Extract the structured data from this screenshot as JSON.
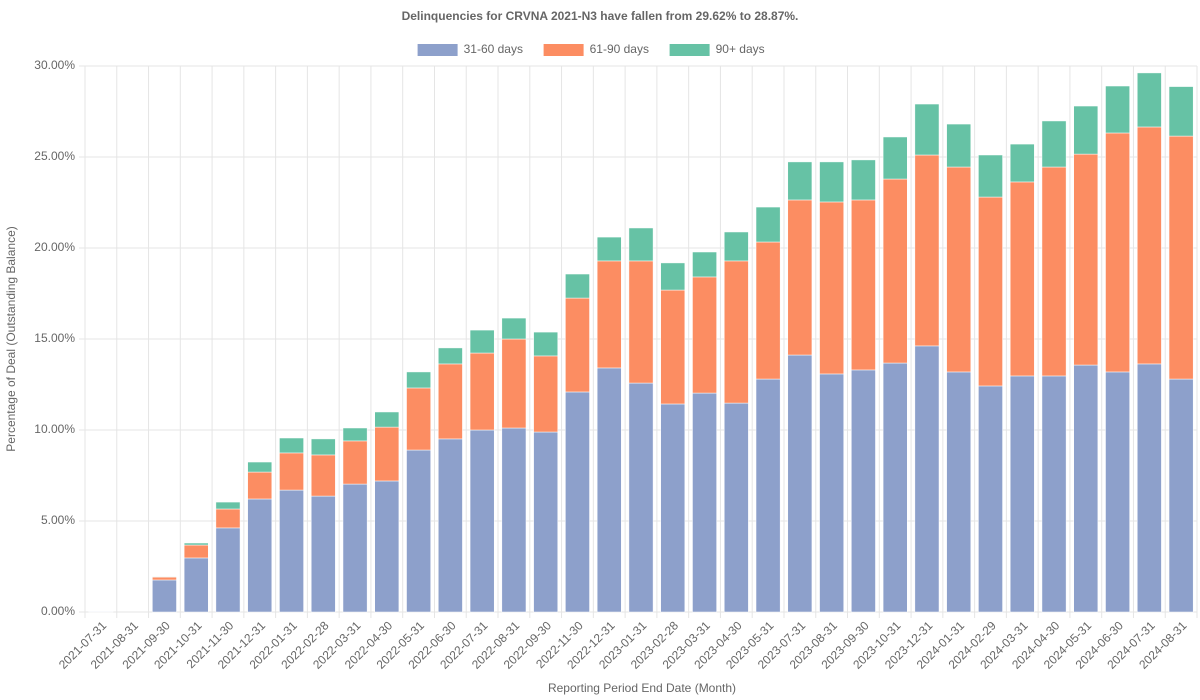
{
  "chart_data": {
    "type": "stacked_bar",
    "title": "Delinquencies for CRVNA 2021-N3 have fallen from 29.62% to 28.87%.",
    "x_label": "Reporting Period End Date (Month)",
    "y_label": "Percentage of Deal (Outstanding Balance)",
    "categories": [
      "2021-07-31",
      "2021-08-31",
      "2021-09-30",
      "2021-10-31",
      "2021-11-30",
      "2021-12-31",
      "2022-01-31",
      "2022-02-28",
      "2022-03-31",
      "2022-04-30",
      "2022-05-31",
      "2022-06-30",
      "2022-07-31",
      "2022-08-31",
      "2022-09-30",
      "2022-11-30",
      "2022-12-31",
      "2023-01-31",
      "2023-02-28",
      "2023-03-31",
      "2023-04-30",
      "2023-05-31",
      "2023-07-31",
      "2023-08-31",
      "2023-09-30",
      "2023-10-31",
      "2023-12-31",
      "2024-01-31",
      "2024-02-29",
      "2024-03-31",
      "2024-04-30",
      "2024-05-31",
      "2024-06-30",
      "2024-07-31",
      "2024-08-31"
    ],
    "series": [
      {
        "name": "31-60 days",
        "color": "#8da0cb",
        "values": [
          0.03,
          0,
          1.76,
          2.97,
          4.62,
          6.21,
          6.7,
          6.37,
          7.03,
          7.2,
          8.9,
          9.51,
          10.0,
          10.11,
          9.89,
          12.09,
          13.41,
          12.58,
          11.43,
          12.03,
          11.48,
          12.8,
          14.12,
          13.08,
          13.3,
          13.68,
          14.62,
          13.19,
          12.42,
          12.97,
          12.97,
          13.57,
          13.19,
          13.63,
          12.8
        ]
      },
      {
        "name": "61-90 days",
        "color": "#fc8d62",
        "values": [
          0,
          0,
          0.16,
          0.71,
          1.04,
          1.48,
          2.04,
          2.26,
          2.37,
          2.96,
          3.41,
          4.12,
          4.23,
          4.89,
          4.18,
          5.16,
          5.88,
          6.71,
          6.26,
          6.38,
          7.81,
          7.53,
          8.52,
          9.45,
          9.34,
          10.11,
          10.49,
          11.26,
          10.38,
          10.66,
          11.48,
          11.59,
          13.13,
          13.02,
          13.35
        ]
      },
      {
        "name": "90+ days",
        "color": "#66c2a5",
        "values": [
          0,
          0,
          0.03,
          0.11,
          0.38,
          0.55,
          0.82,
          0.88,
          0.71,
          0.83,
          0.88,
          0.88,
          1.26,
          1.15,
          1.31,
          1.32,
          1.31,
          1.81,
          1.49,
          1.37,
          1.59,
          1.92,
          2.09,
          2.2,
          2.2,
          2.31,
          2.8,
          2.36,
          2.31,
          2.08,
          2.53,
          2.64,
          2.58,
          2.97,
          2.72
        ]
      }
    ],
    "ylim": [
      0,
      30
    ],
    "yticks": [
      {
        "value": 0,
        "label": "0.00%"
      },
      {
        "value": 5,
        "label": "5.00%"
      },
      {
        "value": 10,
        "label": "10.00%"
      },
      {
        "value": 15,
        "label": "15.00%"
      },
      {
        "value": 20,
        "label": "20.00%"
      },
      {
        "value": 25,
        "label": "25.00%"
      },
      {
        "value": 30,
        "label": "30.00%"
      }
    ],
    "grid": true
  }
}
